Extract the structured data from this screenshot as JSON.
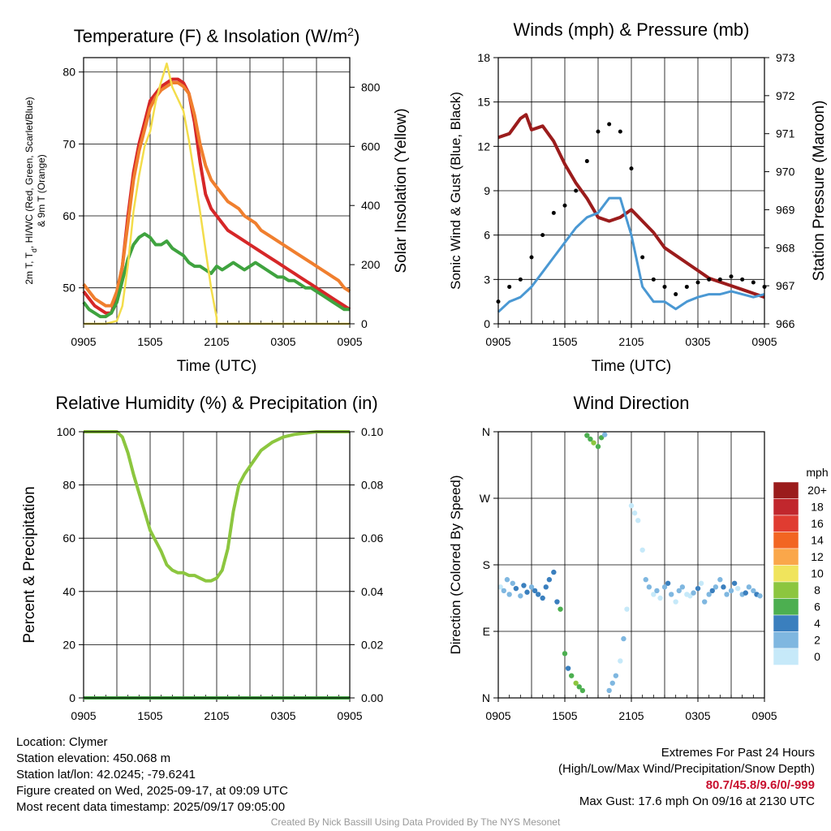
{
  "chart_data": [
    {
      "type": "line",
      "title": "Temperature (F) & Insolation (W/m²)",
      "xlabel": "Time (UTC)",
      "ylabel": "2m T, Td, HI/WC (Red, Green, Scarlet/Blue) & 9m T (Orange)",
      "ylabel_line1": "2m T, T",
      "ylabel_sub": "d",
      "ylabel_line1b": ", HI/WC (Red, Green, Scarlet/Blue)",
      "ylabel_line2": "& 9m T (Orange)",
      "y2label": "Solar Insolation (Yellow)",
      "xticks": [
        "0905",
        "1505",
        "2105",
        "0305",
        "0905"
      ],
      "yticks": [
        50,
        60,
        70,
        80
      ],
      "y2ticks": [
        0,
        200,
        400,
        600,
        800
      ],
      "ylim": [
        45,
        82
      ],
      "y2lim": [
        0,
        900
      ],
      "xlim": [
        0,
        24
      ],
      "series": [
        {
          "color": "#d62728",
          "axis": "left",
          "x": [
            0,
            0.5,
            1,
            1.5,
            2,
            2.5,
            3,
            3.5,
            4,
            4.5,
            5,
            5.5,
            6,
            6.5,
            7,
            7.5,
            8,
            8.5,
            9,
            9.5,
            10,
            10.5,
            11,
            11.5,
            12,
            12.5,
            13,
            13.5,
            14,
            14.5,
            15,
            15.5,
            16,
            16.5,
            17,
            17.5,
            18,
            18.5,
            19,
            19.5,
            20,
            20.5,
            21,
            21.5,
            22,
            22.5,
            23,
            23.5,
            24
          ],
          "values": [
            49.5,
            48.5,
            47.5,
            47,
            46.5,
            46.5,
            49,
            53,
            60,
            66,
            70,
            73,
            76,
            77,
            78,
            78.5,
            79,
            79,
            78.5,
            77,
            73,
            67.5,
            63,
            61,
            60,
            59,
            58,
            57.5,
            57,
            56.5,
            56,
            55.5,
            55,
            54.5,
            54,
            53.5,
            53,
            52.5,
            52,
            51.5,
            51,
            50.5,
            50,
            49.5,
            49,
            48.5,
            48,
            47.5,
            47
          ]
        },
        {
          "color": "#f07f2e",
          "axis": "left",
          "x": [
            0,
            0.5,
            1,
            1.5,
            2,
            2.5,
            3,
            3.5,
            4,
            4.5,
            5,
            5.5,
            6,
            6.5,
            7,
            7.5,
            8,
            8.5,
            9,
            9.5,
            10,
            10.5,
            11,
            11.5,
            12,
            12.5,
            13,
            13.5,
            14,
            14.5,
            15,
            15.5,
            16,
            16.5,
            17,
            17.5,
            18,
            18.5,
            19,
            19.5,
            20,
            20.5,
            21,
            21.5,
            22,
            22.5,
            23,
            23.5,
            24
          ],
          "values": [
            50.5,
            49.5,
            48.5,
            48,
            47.5,
            47.5,
            49.5,
            53,
            59,
            65,
            69,
            72,
            75,
            76.5,
            77.5,
            78,
            78.5,
            78.5,
            78,
            77,
            74,
            70,
            67,
            65,
            64,
            63,
            62,
            61.5,
            61,
            60,
            59.5,
            59,
            58,
            57.5,
            57,
            56.5,
            56,
            55.5,
            55,
            54.5,
            54,
            53.5,
            53,
            52.5,
            52,
            51.5,
            51,
            50,
            49.5
          ]
        },
        {
          "color": "#3fa33f",
          "axis": "left",
          "x": [
            0,
            0.5,
            1,
            1.5,
            2,
            2.5,
            3,
            3.5,
            4,
            4.5,
            5,
            5.5,
            6,
            6.5,
            7,
            7.5,
            8,
            8.5,
            9,
            9.5,
            10,
            10.5,
            11,
            11.5,
            12,
            12.5,
            13,
            13.5,
            14,
            14.5,
            15,
            15.5,
            16,
            16.5,
            17,
            17.5,
            18,
            18.5,
            19,
            19.5,
            20,
            20.5,
            21,
            21.5,
            22,
            22.5,
            23,
            23.5,
            24
          ],
          "values": [
            48,
            47,
            46.5,
            46,
            46,
            46.5,
            48,
            51,
            54,
            56,
            57,
            57.5,
            57,
            56,
            56,
            56.5,
            55.5,
            55,
            54.5,
            53.5,
            53,
            53,
            52.5,
            52,
            53,
            52.5,
            53,
            53.5,
            53,
            52.5,
            53,
            53.5,
            53,
            52.5,
            52,
            51.5,
            51.5,
            51,
            51,
            50.5,
            50,
            50,
            49.5,
            49,
            48.5,
            48,
            47.5,
            47,
            47
          ]
        },
        {
          "color": "#f3dd4b",
          "axis": "right",
          "x": [
            0,
            2,
            3,
            3.5,
            4,
            4.5,
            5,
            5.5,
            6,
            6.5,
            7,
            7.5,
            8,
            8.5,
            9,
            9.5,
            10,
            10.5,
            11,
            11.5,
            12,
            12,
            24
          ],
          "values": [
            0,
            0,
            10,
            60,
            200,
            380,
            500,
            600,
            650,
            750,
            820,
            880,
            800,
            760,
            720,
            620,
            500,
            380,
            250,
            120,
            20,
            0,
            0
          ]
        }
      ]
    },
    {
      "type": "line",
      "title": "Winds (mph) & Pressure (mb)",
      "xlabel": "Time (UTC)",
      "ylabel": "Sonic Wind & Gust (Blue, Black)",
      "y2label": "Station Pressure (Maroon)",
      "xticks": [
        "0905",
        "1505",
        "2105",
        "0305",
        "0905"
      ],
      "yticks": [
        0,
        3,
        6,
        9,
        12,
        15,
        18
      ],
      "y2ticks": [
        966,
        967,
        968,
        969,
        970,
        971,
        972,
        973
      ],
      "ylim": [
        0,
        18
      ],
      "y2lim": [
        966,
        973
      ],
      "xlim": [
        0,
        24
      ],
      "series": [
        {
          "color": "#9b1c1c",
          "axis": "right",
          "x": [
            0,
            1,
            2,
            2.5,
            3,
            4,
            5,
            6,
            7,
            8,
            9,
            10,
            11,
            12,
            13,
            14,
            15,
            16,
            17,
            18,
            19,
            20,
            21,
            22,
            23,
            24
          ],
          "values": [
            970.9,
            971,
            971.4,
            971.5,
            971.1,
            971.2,
            970.8,
            970.2,
            969.7,
            969.3,
            968.8,
            968.7,
            968.8,
            969,
            968.7,
            968.4,
            968,
            967.8,
            967.6,
            967.4,
            967.2,
            967.1,
            967,
            966.9,
            966.8,
            966.7
          ]
        },
        {
          "color": "#4a98d3",
          "axis": "left",
          "x": [
            0,
            1,
            2,
            3,
            4,
            5,
            6,
            7,
            8,
            9,
            10,
            11,
            12,
            13,
            14,
            15,
            16,
            17,
            18,
            19,
            20,
            21,
            22,
            23,
            24
          ],
          "values": [
            0.8,
            1.5,
            1.8,
            2.5,
            3.5,
            4.5,
            5.5,
            6.5,
            7.2,
            7.5,
            8.5,
            8.5,
            6,
            2.5,
            1.5,
            1.5,
            1,
            1.5,
            1.8,
            2,
            2,
            2.2,
            2,
            1.8,
            2
          ]
        },
        {
          "color": "#000000",
          "axis": "left",
          "x": [
            0,
            1,
            2,
            3,
            4,
            5,
            6,
            7,
            8,
            9,
            10,
            11,
            12,
            13,
            14,
            15,
            16,
            17,
            18,
            19,
            20,
            21,
            22,
            23,
            24
          ],
          "values": [
            1.5,
            2.5,
            3,
            4.5,
            6,
            7.5,
            8,
            9,
            11,
            13,
            13.5,
            13,
            10.5,
            4.5,
            3,
            2.5,
            2,
            2.5,
            2.8,
            3,
            3,
            3.2,
            3,
            2.8,
            2.5
          ]
        }
      ]
    },
    {
      "type": "line",
      "title": "Relative Humidity (%) & Precipitation (in)",
      "ylabel": "Percent & Precipitation",
      "xticks": [
        "0905",
        "1505",
        "2105",
        "0305",
        "0905"
      ],
      "yticks": [
        0,
        20,
        40,
        60,
        80,
        100
      ],
      "y2ticks": [
        "0.00",
        "0.02",
        "0.04",
        "0.06",
        "0.08",
        "0.10"
      ],
      "ylim": [
        0,
        100
      ],
      "y2lim": [
        0,
        0.1
      ],
      "xlim": [
        0,
        24
      ],
      "series": [
        {
          "color": "#8cc63f",
          "axis": "left",
          "x": [
            0,
            1,
            2,
            3,
            3.5,
            4,
            4.5,
            5,
            5.5,
            6,
            6.5,
            7,
            7.5,
            8,
            8.5,
            9,
            9.5,
            10,
            10.5,
            11,
            11.5,
            12,
            12.5,
            13,
            13.5,
            14,
            14.5,
            15,
            15.5,
            16,
            17,
            18,
            19,
            20,
            21,
            22,
            23,
            24
          ],
          "values": [
            100,
            100,
            100,
            100,
            98,
            92,
            84,
            77,
            70,
            63,
            59,
            55,
            50,
            48,
            47,
            47,
            46,
            46,
            45,
            44,
            44,
            45,
            48,
            56,
            70,
            80,
            84,
            87,
            90,
            93,
            96,
            98,
            99,
            99.5,
            100,
            100,
            100,
            100
          ]
        },
        {
          "color": "#3fa33f",
          "axis": "right",
          "x": [
            0,
            24
          ],
          "values": [
            0,
            0
          ]
        }
      ]
    },
    {
      "type": "scatter",
      "title": "Wind Direction",
      "ylabel": "Direction (Colored By Speed)",
      "xticks": [
        "0905",
        "1505",
        "2105",
        "0305",
        "0905"
      ],
      "yticks": [
        "N",
        "E",
        "S",
        "W",
        "N"
      ],
      "ylim": [
        0,
        360
      ],
      "xlim": [
        0,
        24
      ],
      "legend": {
        "title": "mph",
        "labels": [
          "20+",
          "18",
          "16",
          "14",
          "12",
          "10",
          "8",
          "6",
          "4",
          "2",
          "0"
        ],
        "colors": [
          "#9b1c1c",
          "#c1272d",
          "#e03c31",
          "#f26522",
          "#faa74a",
          "#f0e45c",
          "#8cc63f",
          "#4caf50",
          "#3a7fbe",
          "#7fb7e0",
          "#c6e9f9"
        ]
      },
      "series": [
        {
          "name": "",
          "x": [
            0.2,
            0.5,
            0.8,
            1,
            1.3,
            1.6,
            2,
            2.3,
            2.6,
            3,
            3.3,
            3.6,
            4,
            4.3,
            4.6,
            5,
            5.3,
            5.6,
            6,
            6.3,
            6.6,
            7,
            7.3,
            7.6,
            8,
            8.3,
            8.6,
            9,
            9.3,
            9.6,
            10,
            10.3,
            10.6,
            11,
            11.3,
            11.6,
            12,
            12.3,
            12.6,
            13,
            13.3,
            13.6,
            14,
            14.3,
            14.6,
            15,
            15.3,
            15.6,
            16,
            16.3,
            16.6,
            17,
            17.3,
            17.6,
            18,
            18.3,
            18.6,
            19,
            19.3,
            19.6,
            20,
            20.3,
            20.6,
            21,
            21.3,
            21.6,
            22,
            22.3,
            22.6,
            23,
            23.3,
            23.6
          ],
          "values": [
            150,
            145,
            160,
            140,
            155,
            148,
            138,
            152,
            143,
            150,
            145,
            140,
            135,
            150,
            160,
            170,
            130,
            120,
            60,
            40,
            30,
            20,
            15,
            10,
            355,
            350,
            345,
            340,
            352,
            356,
            10,
            20,
            30,
            50,
            80,
            120,
            260,
            250,
            240,
            200,
            160,
            150,
            140,
            145,
            135,
            150,
            155,
            140,
            130,
            145,
            150,
            140,
            138,
            142,
            148,
            155,
            130,
            140,
            145,
            150,
            160,
            150,
            140,
            145,
            155,
            148,
            140,
            142,
            150,
            145,
            140,
            138
          ],
          "colors": [
            "#c6e9f9",
            "#7fb7e0",
            "#7fb7e0",
            "#7fb7e0",
            "#7fb7e0",
            "#3a7fbe",
            "#7fb7e0",
            "#3a7fbe",
            "#3a7fbe",
            "#7fb7e0",
            "#3a7fbe",
            "#3a7fbe",
            "#3a7fbe",
            "#3a7fbe",
            "#3a7fbe",
            "#3a7fbe",
            "#3a7fbe",
            "#4caf50",
            "#4caf50",
            "#3a7fbe",
            "#4caf50",
            "#8cc63f",
            "#4caf50",
            "#4caf50",
            "#4caf50",
            "#4caf50",
            "#8cc63f",
            "#4caf50",
            "#4caf50",
            "#7fb7e0",
            "#7fb7e0",
            "#7fb7e0",
            "#7fb7e0",
            "#c6e9f9",
            "#7fb7e0",
            "#c6e9f9",
            "#c6e9f9",
            "#c6e9f9",
            "#c6e9f9",
            "#c6e9f9",
            "#7fb7e0",
            "#7fb7e0",
            "#c6e9f9",
            "#7fb7e0",
            "#c6e9f9",
            "#7fb7e0",
            "#3a7fbe",
            "#7fb7e0",
            "#c6e9f9",
            "#7fb7e0",
            "#7fb7e0",
            "#c6e9f9",
            "#c6e9f9",
            "#7fb7e0",
            "#3a7fbe",
            "#c6e9f9",
            "#7fb7e0",
            "#7fb7e0",
            "#3a7fbe",
            "#7fb7e0",
            "#7fb7e0",
            "#3a7fbe",
            "#7fb7e0",
            "#7fb7e0",
            "#3a7fbe",
            "#c6e9f9",
            "#7fb7e0",
            "#3a7fbe",
            "#7fb7e0",
            "#7fb7e0",
            "#3a7fbe",
            "#7fb7e0"
          ]
        }
      ]
    }
  ],
  "footer": {
    "location": "Location: Clymer",
    "elevation": "Station elevation: 450.068 m",
    "latlon": "Station lat/lon: 42.0245; -79.6241",
    "created": "Figure created on Wed, 2025-09-17, at 09:09 UTC",
    "recent": "Most recent data timestamp: 2025/09/17 09:05:00",
    "extremes_title": "Extremes For Past 24 Hours",
    "extremes_sub": "(High/Low/Max Wind/Precipitation/Snow Depth)",
    "extremes_values": "80.7/45.8/9.6/0/-999",
    "max_gust": "Max Gust: 17.6 mph On 09/16 at 2130 UTC",
    "credit": "Created By Nick Bassill Using Data Provided By The NYS Mesonet"
  }
}
